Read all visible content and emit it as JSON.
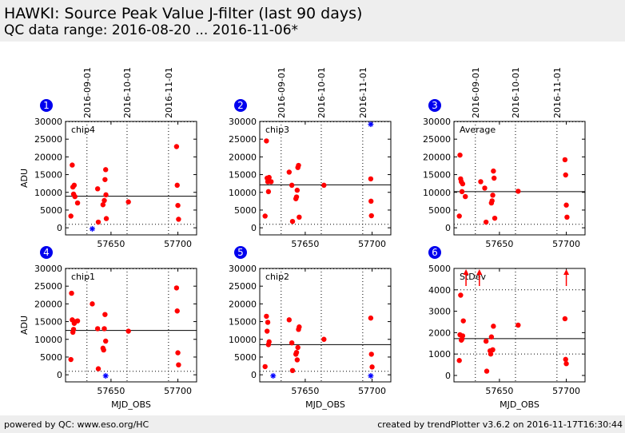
{
  "header": {
    "title": "HAWKI: Source Peak Value J-filter (last 90 days)",
    "subtitle": "QC data range: 2016-08-20 ... 2016-11-06*"
  },
  "footer": {
    "left": "powered by QC: www.eso.org/HC",
    "right": "created by trendPlotter v3.6.2 on 2016-11-17T16:30:44"
  },
  "colors": {
    "point": "#ff0000",
    "outlier": "#0000ff",
    "badge": "#0000ee",
    "line": "#000000"
  },
  "date_ticks": [
    {
      "label": "2016-09-01",
      "mjd": 57632
    },
    {
      "label": "2016-10-01",
      "mjd": 57662
    },
    {
      "label": "2016-11-01",
      "mjd": 57693
    }
  ],
  "chart_data": [
    {
      "type": "scatter",
      "number": "1",
      "label": "chip4",
      "xlabel": "",
      "ylabel": "ADU",
      "xlim": [
        57616,
        57714
      ],
      "ylim": [
        -2000,
        30000
      ],
      "xticks": [
        57650,
        57700
      ],
      "xtick_labels": [
        "57650",
        "57700"
      ],
      "show_xtick_labels": true,
      "yticks": [
        0,
        5000,
        10000,
        15000,
        20000,
        25000,
        30000
      ],
      "ytick_labels": [
        "0",
        "5000",
        "10000",
        "15000",
        "20000",
        "25000",
        "30000"
      ],
      "reference_lines": {
        "mean": 8900,
        "upper": 29900,
        "lower": 1000
      },
      "points": [
        [
          57620,
          3300
        ],
        [
          57621,
          17700
        ],
        [
          57621.5,
          11500
        ],
        [
          57622,
          9500
        ],
        [
          57622.5,
          12000
        ],
        [
          57623,
          8800
        ],
        [
          57625,
          7000
        ],
        [
          57640,
          11000
        ],
        [
          57640.5,
          1600
        ],
        [
          57644,
          6500
        ],
        [
          57645,
          7700
        ],
        [
          57645.5,
          13600
        ],
        [
          57646,
          16400
        ],
        [
          57646.2,
          9300
        ],
        [
          57646.5,
          2600
        ],
        [
          57663,
          7300
        ],
        [
          57699,
          22900
        ],
        [
          57699.5,
          12000
        ],
        [
          57700,
          6300
        ],
        [
          57700.5,
          2400
        ]
      ],
      "outliers": [
        [
          57636,
          -300
        ]
      ],
      "arrows": []
    },
    {
      "type": "scatter",
      "number": "2",
      "label": "chip3",
      "xlabel": "",
      "ylabel": "",
      "xlim": [
        57616,
        57714
      ],
      "ylim": [
        -2000,
        30000
      ],
      "xticks": [
        57650,
        57700
      ],
      "xtick_labels": [
        "57650",
        "57700"
      ],
      "show_xtick_labels": true,
      "yticks": [
        0,
        5000,
        10000,
        15000,
        20000,
        25000,
        30000
      ],
      "ytick_labels": [
        "0",
        "5000",
        "10000",
        "15000",
        "20000",
        "25000",
        "30000"
      ],
      "reference_lines": {
        "mean": 12100,
        "upper": 29900,
        "lower": 1000
      },
      "points": [
        [
          57620,
          3300
        ],
        [
          57621,
          24500
        ],
        [
          57621.5,
          14000
        ],
        [
          57622,
          13000
        ],
        [
          57622.5,
          10200
        ],
        [
          57623,
          14200
        ],
        [
          57624.5,
          13000
        ],
        [
          57638,
          15700
        ],
        [
          57640,
          12000
        ],
        [
          57640.5,
          1800
        ],
        [
          57643,
          8200
        ],
        [
          57643.5,
          8700
        ],
        [
          57644,
          10600
        ],
        [
          57644.5,
          17000
        ],
        [
          57645,
          17600
        ],
        [
          57645.5,
          3000
        ],
        [
          57664,
          12000
        ],
        [
          57699,
          13800
        ],
        [
          57699.2,
          7500
        ],
        [
          57699.5,
          3400
        ]
      ],
      "outliers": [
        [
          57699,
          29200
        ]
      ],
      "arrows": []
    },
    {
      "type": "scatter",
      "number": "3",
      "label": "Average",
      "xlabel": "",
      "ylabel": "",
      "xlim": [
        57616,
        57714
      ],
      "ylim": [
        -2000,
        30000
      ],
      "xticks": [
        57650,
        57700
      ],
      "xtick_labels": [
        "57650",
        "57700"
      ],
      "show_xtick_labels": true,
      "yticks": [
        0,
        5000,
        10000,
        15000,
        20000,
        25000,
        30000
      ],
      "ytick_labels": [
        "0",
        "5000",
        "10000",
        "15000",
        "20000",
        "25000",
        "30000"
      ],
      "reference_lines": {
        "mean": 10200,
        "upper": 29900,
        "lower": 1000
      },
      "points": [
        [
          57620,
          3300
        ],
        [
          57620.5,
          20500
        ],
        [
          57621,
          13800
        ],
        [
          57621.5,
          13000
        ],
        [
          57622,
          10200
        ],
        [
          57622.5,
          12400
        ],
        [
          57624.5,
          8800
        ],
        [
          57636,
          13000
        ],
        [
          57639,
          11200
        ],
        [
          57640,
          1600
        ],
        [
          57644,
          7000
        ],
        [
          57644.5,
          7600
        ],
        [
          57645,
          9200
        ],
        [
          57645.5,
          16000
        ],
        [
          57646,
          14000
        ],
        [
          57646.5,
          2700
        ],
        [
          57664,
          10300
        ],
        [
          57699,
          19200
        ],
        [
          57699.5,
          14900
        ],
        [
          57700,
          6400
        ],
        [
          57700.5,
          3000
        ]
      ],
      "outliers": [],
      "arrows": []
    },
    {
      "type": "scatter",
      "number": "4",
      "label": "chip1",
      "xlabel": "MJD_OBS",
      "ylabel": "ADU",
      "xlim": [
        57616,
        57714
      ],
      "ylim": [
        -2000,
        30000
      ],
      "xticks": [
        57650,
        57700
      ],
      "xtick_labels": [
        "57650",
        "57700"
      ],
      "show_xtick_labels": true,
      "yticks": [
        0,
        5000,
        10000,
        15000,
        20000,
        25000,
        30000
      ],
      "ytick_labels": [
        "0",
        "5000",
        "10000",
        "15000",
        "20000",
        "25000",
        "30000"
      ],
      "reference_lines": {
        "mean": 12500,
        "upper": 29900,
        "lower": 1000
      },
      "points": [
        [
          57620,
          4300
        ],
        [
          57620.5,
          23000
        ],
        [
          57621,
          15500
        ],
        [
          57621.5,
          12000
        ],
        [
          57622,
          12800
        ],
        [
          57622.5,
          14500
        ],
        [
          57623,
          15000
        ],
        [
          57625,
          15200
        ],
        [
          57636,
          20000
        ],
        [
          57640,
          13000
        ],
        [
          57640.5,
          1700
        ],
        [
          57644,
          7500
        ],
        [
          57644.5,
          7000
        ],
        [
          57645,
          13000
        ],
        [
          57645.5,
          17000
        ],
        [
          57646,
          9500
        ],
        [
          57663,
          12300
        ],
        [
          57699,
          24500
        ],
        [
          57699.5,
          18000
        ],
        [
          57700,
          6200
        ],
        [
          57700.5,
          2800
        ]
      ],
      "outliers": [
        [
          57646,
          -300
        ]
      ],
      "arrows": []
    },
    {
      "type": "scatter",
      "number": "5",
      "label": "chip2",
      "xlabel": "MJD_OBS",
      "ylabel": "",
      "xlim": [
        57616,
        57714
      ],
      "ylim": [
        -2000,
        30000
      ],
      "xticks": [
        57650,
        57700
      ],
      "xtick_labels": [
        "57650",
        "57700"
      ],
      "show_xtick_labels": true,
      "yticks": [
        0,
        5000,
        10000,
        15000,
        20000,
        25000,
        30000
      ],
      "ytick_labels": [
        "0",
        "5000",
        "10000",
        "15000",
        "20000",
        "25000",
        "30000"
      ],
      "reference_lines": {
        "mean": 8500,
        "upper": 29900,
        "lower": 1000
      },
      "points": [
        [
          57620,
          2300
        ],
        [
          57621,
          16500
        ],
        [
          57621.5,
          12300
        ],
        [
          57622,
          14800
        ],
        [
          57622.5,
          8500
        ],
        [
          57623,
          9300
        ],
        [
          57638,
          15500
        ],
        [
          57640,
          9000
        ],
        [
          57640.5,
          1200
        ],
        [
          57643,
          5800
        ],
        [
          57643.5,
          6300
        ],
        [
          57644,
          4200
        ],
        [
          57644.5,
          7700
        ],
        [
          57645,
          12800
        ],
        [
          57645.5,
          13500
        ],
        [
          57664,
          10000
        ],
        [
          57699,
          16000
        ],
        [
          57699.5,
          5800
        ],
        [
          57700,
          2200
        ]
      ],
      "outliers": [
        [
          57626,
          -300
        ],
        [
          57699,
          -300
        ]
      ],
      "arrows": []
    },
    {
      "type": "scatter",
      "number": "6",
      "label": "StDev",
      "xlabel": "MJD_OBS",
      "ylabel": "",
      "xlim": [
        57616,
        57714
      ],
      "ylim": [
        -300,
        5000
      ],
      "xticks": [
        57650,
        57700
      ],
      "xtick_labels": [
        "57650",
        "57700"
      ],
      "show_xtick_labels": true,
      "yticks": [
        0,
        1000,
        2000,
        3000,
        4000,
        5000
      ],
      "ytick_labels": [
        "0",
        "1000",
        "2000",
        "3000",
        "4000",
        "5000"
      ],
      "reference_lines": {
        "mean": 1720,
        "upper": 4000,
        "lower": 1000
      },
      "points": [
        [
          57620,
          700
        ],
        [
          57620.5,
          1900
        ],
        [
          57621,
          3750
        ],
        [
          57621.5,
          1650
        ],
        [
          57622,
          1700
        ],
        [
          57622.5,
          1850
        ],
        [
          57623,
          2550
        ],
        [
          57640,
          1600
        ],
        [
          57640.5,
          200
        ],
        [
          57643,
          1150
        ],
        [
          57643.5,
          1000
        ],
        [
          57644,
          1800
        ],
        [
          57645,
          1200
        ],
        [
          57645.5,
          2300
        ],
        [
          57664,
          2350
        ],
        [
          57699,
          2650
        ],
        [
          57699.5,
          750
        ],
        [
          57700,
          550
        ]
      ],
      "outliers": [],
      "arrows": [
        57625,
        57635,
        57700
      ]
    }
  ]
}
